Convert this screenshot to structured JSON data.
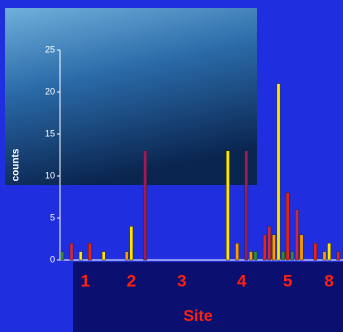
{
  "chart_data": {
    "type": "bar",
    "ylabel": "counts",
    "xlabel": "Site",
    "categories": [
      null,
      null,
      null,
      null,
      null,
      "1",
      null,
      null,
      null,
      null,
      null,
      null,
      null,
      null,
      null,
      "2",
      null,
      null,
      null,
      null,
      null,
      null,
      null,
      null,
      null,
      null,
      "3",
      null,
      null,
      null,
      null,
      null,
      null,
      null,
      null,
      null,
      null,
      null,
      null,
      "4",
      null,
      null,
      null,
      null,
      null,
      null,
      null,
      null,
      null,
      "5",
      null,
      null,
      null,
      null,
      null,
      null,
      null,
      null,
      "8",
      null,
      null
    ],
    "values": [
      1,
      null,
      2,
      null,
      1,
      null,
      2,
      null,
      null,
      1,
      null,
      null,
      null,
      null,
      1,
      4,
      null,
      null,
      13,
      null,
      null,
      null,
      null,
      null,
      null,
      null,
      null,
      null,
      null,
      null,
      null,
      null,
      null,
      null,
      null,
      null,
      13,
      null,
      2,
      null,
      13,
      1,
      1,
      null,
      3,
      4,
      3,
      21,
      1,
      8,
      1,
      6,
      3,
      null,
      null,
      2,
      null,
      1,
      2,
      null,
      1
    ],
    "colors": [
      "#2e8b3e",
      null,
      "#c8284a",
      null,
      "#ffe600",
      null,
      "#ee2211",
      null,
      null,
      "#ffe600",
      null,
      null,
      null,
      null,
      "#ff9900",
      "#ffe600",
      null,
      null,
      "#9b1b5e",
      null,
      null,
      null,
      null,
      null,
      null,
      null,
      null,
      null,
      null,
      null,
      null,
      null,
      null,
      null,
      null,
      null,
      "#ffe600",
      null,
      "#ff9900",
      null,
      "#9b1b5e",
      "#ff9900",
      "#2e8b3e",
      null,
      "#ee2211",
      "#c8284a",
      "#ff9900",
      "#ffe600",
      "#2e8b3e",
      "#ee2211",
      "#2e8b3e",
      "#c8284a",
      "#ff9900",
      null,
      null,
      "#ee2211",
      null,
      "#ff9900",
      "#ffe600",
      null,
      "#ee2211"
    ],
    "ylim": [
      0,
      25
    ],
    "yticks": [
      0,
      5,
      10,
      15,
      20,
      25
    ]
  }
}
